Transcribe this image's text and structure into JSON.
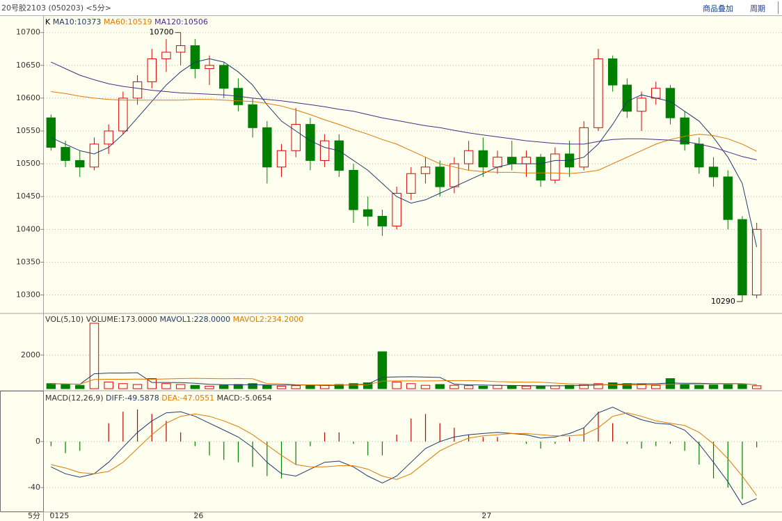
{
  "header": {
    "title": "20号胶2103 (050203) <5分>",
    "links": [
      "商品叠加",
      "周期"
    ]
  },
  "x_axis": {
    "period_label": "5分"
  },
  "chart_data": [
    {
      "type": "candlestick",
      "legend_title": "K",
      "categories": [
        "0125",
        null,
        null,
        null,
        null,
        null,
        null,
        null,
        null,
        null,
        "26",
        null,
        null,
        null,
        null,
        null,
        null,
        null,
        null,
        null,
        null,
        null,
        null,
        null,
        null,
        null,
        null,
        null,
        null,
        null,
        "27",
        null,
        null,
        null,
        null,
        null,
        null,
        null,
        null,
        null,
        null,
        null,
        null,
        null,
        null,
        null,
        null,
        null,
        null,
        null
      ],
      "open": [
        10570,
        10525,
        10505,
        10495,
        10530,
        10550,
        10600,
        10625,
        10660,
        10670,
        10680,
        10645,
        10650,
        10615,
        10590,
        10555,
        10495,
        10520,
        10560,
        10505,
        10535,
        10490,
        10430,
        10420,
        10405,
        10455,
        10485,
        10495,
        10465,
        10500,
        10520,
        10495,
        10510,
        10500,
        10510,
        10475,
        10515,
        10495,
        10555,
        10660,
        10620,
        10580,
        10600,
        10615,
        10570,
        10530,
        10495,
        10480,
        10415,
        10300
      ],
      "high": [
        10575,
        10535,
        10520,
        10540,
        10560,
        10610,
        10635,
        10675,
        10690,
        10700,
        10690,
        10665,
        10655,
        10630,
        10600,
        10565,
        10530,
        10585,
        10570,
        10545,
        10545,
        10500,
        10450,
        10430,
        10465,
        10495,
        10510,
        10505,
        10510,
        10535,
        10540,
        10520,
        10535,
        10520,
        10515,
        10525,
        10535,
        10565,
        10675,
        10665,
        10630,
        10610,
        10625,
        10620,
        10580,
        10540,
        10510,
        10490,
        10420,
        10410
      ],
      "low": [
        10520,
        10495,
        10480,
        10490,
        10515,
        10545,
        10590,
        10615,
        10640,
        10650,
        10630,
        10620,
        10600,
        10580,
        10540,
        10470,
        10480,
        10510,
        10490,
        10495,
        10480,
        10410,
        10405,
        10390,
        10400,
        10445,
        10470,
        10450,
        10455,
        10490,
        10480,
        10485,
        10490,
        10480,
        10465,
        10470,
        10480,
        10490,
        10550,
        10610,
        10570,
        10550,
        10590,
        10560,
        10520,
        10485,
        10465,
        10400,
        10290,
        10295
      ],
      "close": [
        10525,
        10505,
        10495,
        10530,
        10550,
        10600,
        10625,
        10660,
        10670,
        10680,
        10645,
        10650,
        10615,
        10590,
        10555,
        10495,
        10520,
        10560,
        10505,
        10535,
        10490,
        10430,
        10420,
        10405,
        10455,
        10485,
        10495,
        10465,
        10500,
        10520,
        10495,
        10510,
        10500,
        10510,
        10475,
        10515,
        10495,
        10555,
        10660,
        10620,
        10580,
        10600,
        10615,
        10570,
        10530,
        10495,
        10480,
        10415,
        10300,
        10400
      ],
      "up_color": "#e00000",
      "down_color": "#008000",
      "series": [
        {
          "name": "MA10:10373",
          "color": "#1f3a6e",
          "values": [
            10540,
            10530,
            10520,
            10515,
            10525,
            10545,
            10570,
            10595,
            10620,
            10640,
            10655,
            10660,
            10655,
            10640,
            10620,
            10590,
            10565,
            10550,
            10535,
            10525,
            10520,
            10505,
            10490,
            10470,
            10450,
            10440,
            10445,
            10455,
            10465,
            10475,
            10485,
            10495,
            10500,
            10500,
            10500,
            10505,
            10505,
            10510,
            10530,
            10560,
            10595,
            10605,
            10600,
            10595,
            10580,
            10565,
            10540,
            10510,
            10470,
            10373
          ]
        },
        {
          "name": "MA60:10519",
          "color": "#e07800",
          "values": [
            10610,
            10607,
            10603,
            10600,
            10598,
            10597,
            10597,
            10597,
            10597,
            10597,
            10598,
            10598,
            10597,
            10596,
            10595,
            10592,
            10588,
            10582,
            10575,
            10567,
            10560,
            10552,
            10545,
            10537,
            10530,
            10520,
            10510,
            10500,
            10495,
            10490,
            10488,
            10487,
            10487,
            10486,
            10486,
            10486,
            10485,
            10487,
            10490,
            10500,
            10510,
            10520,
            10530,
            10537,
            10542,
            10545,
            10543,
            10538,
            10530,
            10519
          ]
        },
        {
          "name": "MA120:10506",
          "color": "#4b2a8a",
          "values": [
            10655,
            10645,
            10635,
            10628,
            10622,
            10618,
            10615,
            10612,
            10610,
            10608,
            10607,
            10606,
            10605,
            10603,
            10600,
            10598,
            10596,
            10593,
            10590,
            10587,
            10583,
            10580,
            10575,
            10570,
            10566,
            10562,
            10558,
            10555,
            10551,
            10547,
            10544,
            10541,
            10538,
            10535,
            10533,
            10531,
            10530,
            10530,
            10534,
            10537,
            10538,
            10538,
            10537,
            10536,
            10534,
            10530,
            10525,
            10518,
            10511,
            10506
          ]
        }
      ],
      "ylim": [
        10274,
        10722
      ],
      "yticks": [
        10300,
        10350,
        10400,
        10450,
        10500,
        10550,
        10600,
        10650,
        10700
      ],
      "grid": true,
      "annotations": [
        {
          "text": "10700",
          "index": 9,
          "value": 10700
        },
        {
          "text": "10290",
          "index": 48,
          "value": 10290
        }
      ]
    },
    {
      "type": "volume",
      "title": "VOL(5,10)",
      "legend": [
        "VOLUME:173.0000"
      ],
      "values": [
        300,
        250,
        200,
        3900,
        400,
        300,
        250,
        600,
        300,
        250,
        200,
        150,
        200,
        250,
        300,
        200,
        150,
        180,
        200,
        220,
        250,
        300,
        350,
        2200,
        400,
        300,
        200,
        250,
        200,
        180,
        150,
        200,
        180,
        150,
        160,
        170,
        200,
        250,
        300,
        350,
        300,
        250,
        200,
        600,
        250,
        200,
        220,
        240,
        250,
        173
      ],
      "series": [
        {
          "name": "MAVOL1:228.0000",
          "color": "#1f3a6e",
          "values": [
            300,
            280,
            260,
            890,
            930,
            930,
            950,
            370,
            370,
            360,
            320,
            260,
            240,
            230,
            240,
            220,
            220,
            220,
            220,
            190,
            200,
            240,
            270,
            680,
            700,
            710,
            690,
            670,
            270,
            230,
            220,
            200,
            190,
            180,
            170,
            170,
            180,
            190,
            220,
            250,
            280,
            290,
            290,
            340,
            320,
            320,
            300,
            300,
            300,
            228
          ]
        },
        {
          "name": "MAVOL2:234.2000",
          "color": "#e07800",
          "values": [
            280,
            280,
            270,
            550,
            560,
            560,
            570,
            560,
            580,
            600,
            620,
            600,
            590,
            600,
            590,
            300,
            290,
            240,
            230,
            230,
            220,
            220,
            240,
            450,
            460,
            460,
            460,
            470,
            480,
            480,
            460,
            420,
            400,
            390,
            380,
            330,
            290,
            270,
            250,
            230,
            230,
            230,
            240,
            260,
            270,
            280,
            280,
            280,
            290,
            234.2
          ]
        }
      ],
      "ylim": [
        0,
        4400
      ],
      "yticks": [
        2000
      ],
      "grid": true
    },
    {
      "type": "macd",
      "title": "MACD(12,26,9)",
      "series": [
        {
          "name": "DIFF:-49.5878",
          "color": "#1f3a6e",
          "values": [
            -22,
            -28,
            -31,
            -28,
            -18,
            -5,
            8,
            18,
            25,
            26,
            22,
            16,
            10,
            4,
            -5,
            -18,
            -28,
            -30,
            -24,
            -18,
            -17,
            -22,
            -30,
            -36,
            -30,
            -18,
            -6,
            0,
            4,
            6,
            7,
            8,
            7,
            6,
            3,
            4,
            7,
            12,
            25,
            30,
            24,
            19,
            16,
            15,
            10,
            -2,
            -18,
            -35,
            -55,
            -49.5878
          ]
        },
        {
          "name": "DEA:-47.0551",
          "color": "#e07800",
          "values": [
            -20,
            -23,
            -27,
            -28,
            -26,
            -18,
            -6,
            6,
            16,
            22,
            24,
            22,
            18,
            13,
            6,
            -3,
            -12,
            -20,
            -22,
            -22,
            -21,
            -21,
            -24,
            -30,
            -33,
            -28,
            -18,
            -8,
            -2,
            3,
            5,
            6,
            7,
            7,
            6,
            5,
            5,
            6,
            12,
            22,
            25,
            22,
            18,
            16,
            14,
            8,
            -2,
            -15,
            -30,
            -47.0551
          ]
        }
      ],
      "histogram": {
        "name": "MACD:-5.0654",
        "up_color": "#c00000",
        "down_color": "#008000",
        "values": [
          -4,
          -10,
          -8,
          0,
          16,
          26,
          28,
          24,
          18,
          8,
          -4,
          -12,
          -16,
          -18,
          -22,
          -30,
          -32,
          -20,
          -4,
          8,
          8,
          -2,
          -12,
          -12,
          6,
          20,
          24,
          16,
          12,
          6,
          4,
          4,
          0,
          -2,
          -6,
          -2,
          4,
          12,
          26,
          16,
          -2,
          -6,
          -4,
          -2,
          -8,
          -20,
          -32,
          -40,
          -50,
          -5.0654
        ]
      },
      "ylim": [
        -60,
        43
      ],
      "yticks": [
        -40,
        0
      ],
      "grid": true
    }
  ]
}
